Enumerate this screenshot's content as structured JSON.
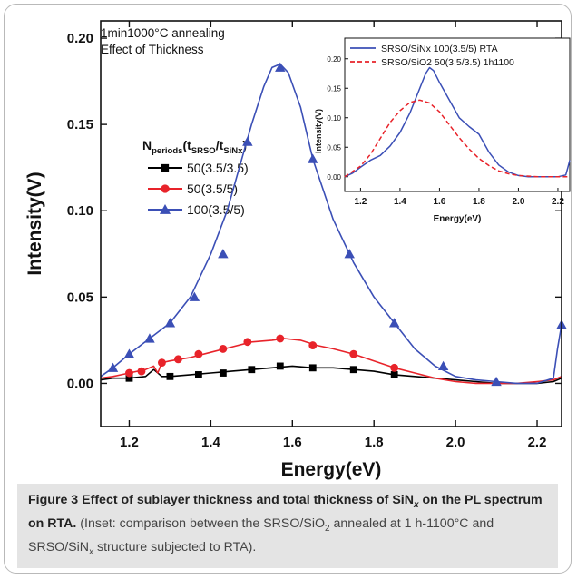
{
  "chart_data": [
    {
      "type": "line",
      "xlabel": "Energy(eV)",
      "ylabel": "Intensity(V)",
      "xlim": [
        1.13,
        2.26
      ],
      "ylim": [
        -0.025,
        0.21
      ],
      "xticks": [
        1.2,
        1.4,
        1.6,
        1.8,
        2.0,
        2.2
      ],
      "xtick_labels": [
        "1.2",
        "1.4",
        "1.6",
        "1.8",
        "2.0",
        "2.2"
      ],
      "yticks": [
        0.0,
        0.05,
        0.1,
        0.15,
        0.2
      ],
      "ytick_labels": [
        "0.00",
        "0.05",
        "0.10",
        "0.15",
        "0.20"
      ],
      "annotations": [
        "1min1000°C annealing",
        "Effect of Thickness"
      ],
      "legend_title": {
        "main": "N",
        "sub1": "periods",
        "mid1": "(t",
        "sub2": "SRSO",
        "mid2": "/t",
        "sub3": "SiNx",
        "end": ")"
      },
      "legend_position": "left-middle",
      "series": [
        {
          "name": "50(3.5/3.5)",
          "color": "#000000",
          "marker": "square",
          "x": [
            1.13,
            1.16,
            1.2,
            1.24,
            1.26,
            1.28,
            1.3,
            1.35,
            1.4,
            1.45,
            1.5,
            1.55,
            1.6,
            1.65,
            1.7,
            1.75,
            1.8,
            1.85,
            1.9,
            1.95,
            2.0,
            2.05,
            2.1,
            2.15,
            2.2,
            2.24,
            2.26
          ],
          "y": [
            0.002,
            0.003,
            0.003,
            0.004,
            0.008,
            0.004,
            0.004,
            0.005,
            0.006,
            0.007,
            0.008,
            0.009,
            0.01,
            0.009,
            0.009,
            0.008,
            0.007,
            0.005,
            0.004,
            0.003,
            0.002,
            0.001,
            0.0,
            0.0,
            0.0,
            0.001,
            0.003
          ],
          "markers_x": [
            1.2,
            1.3,
            1.37,
            1.43,
            1.5,
            1.57,
            1.65,
            1.75,
            1.85
          ],
          "markers_y": [
            0.003,
            0.004,
            0.005,
            0.006,
            0.008,
            0.01,
            0.009,
            0.008,
            0.005
          ]
        },
        {
          "name": "50(3.5/5)",
          "color": "#e8232a",
          "marker": "circle",
          "x": [
            1.13,
            1.16,
            1.2,
            1.24,
            1.26,
            1.27,
            1.28,
            1.3,
            1.35,
            1.4,
            1.45,
            1.5,
            1.55,
            1.58,
            1.62,
            1.66,
            1.7,
            1.75,
            1.8,
            1.85,
            1.9,
            1.95,
            2.0,
            2.05,
            2.1,
            2.15,
            2.2,
            2.24,
            2.26
          ],
          "y": [
            0.003,
            0.004,
            0.006,
            0.008,
            0.01,
            0.006,
            0.012,
            0.013,
            0.015,
            0.018,
            0.021,
            0.024,
            0.025,
            0.026,
            0.025,
            0.022,
            0.02,
            0.017,
            0.013,
            0.009,
            0.006,
            0.003,
            0.001,
            0.0,
            0.0,
            0.0,
            0.001,
            0.002,
            0.004
          ],
          "markers_x": [
            1.2,
            1.23,
            1.28,
            1.32,
            1.37,
            1.43,
            1.49,
            1.57,
            1.65,
            1.75,
            1.85
          ],
          "markers_y": [
            0.006,
            0.007,
            0.012,
            0.014,
            0.017,
            0.02,
            0.024,
            0.026,
            0.022,
            0.017,
            0.009
          ]
        },
        {
          "name": "100(3.5/5)",
          "color": "#3b4fb6",
          "marker": "triangle",
          "x": [
            1.13,
            1.16,
            1.2,
            1.25,
            1.3,
            1.35,
            1.4,
            1.44,
            1.47,
            1.5,
            1.53,
            1.55,
            1.57,
            1.59,
            1.62,
            1.65,
            1.7,
            1.75,
            1.8,
            1.85,
            1.9,
            1.95,
            2.0,
            2.05,
            2.1,
            2.15,
            2.2,
            2.24,
            2.25,
            2.26
          ],
          "y": [
            0.004,
            0.009,
            0.017,
            0.026,
            0.035,
            0.05,
            0.075,
            0.1,
            0.125,
            0.15,
            0.172,
            0.183,
            0.185,
            0.18,
            0.16,
            0.13,
            0.095,
            0.07,
            0.05,
            0.035,
            0.02,
            0.01,
            0.004,
            0.002,
            0.001,
            0.0,
            0.0,
            0.003,
            0.02,
            0.034
          ],
          "markers_x": [
            1.16,
            1.2,
            1.25,
            1.3,
            1.36,
            1.43,
            1.49,
            1.57,
            1.65,
            1.74,
            1.85,
            1.97,
            2.1,
            2.26
          ],
          "markers_y": [
            0.009,
            0.017,
            0.026,
            0.035,
            0.05,
            0.075,
            0.14,
            0.183,
            0.13,
            0.075,
            0.035,
            0.01,
            0.001,
            0.034
          ]
        }
      ]
    },
    {
      "type": "line",
      "xlabel": "Energy(eV)",
      "ylabel": "Intensity(V)",
      "xlim": [
        1.12,
        2.26
      ],
      "ylim": [
        -0.025,
        0.235
      ],
      "xticks": [
        1.2,
        1.4,
        1.6,
        1.8,
        2.0,
        2.2
      ],
      "xtick_labels": [
        "1.2",
        "1.4",
        "1.6",
        "1.8",
        "2.0",
        "2.2"
      ],
      "yticks": [
        0.0,
        0.05,
        0.1,
        0.15,
        0.2
      ],
      "ytick_labels": [
        "0.00",
        "0.05",
        "0.10",
        "0.15",
        "0.20"
      ],
      "legend_position": "top",
      "series": [
        {
          "name": "SRSO/SiNx 100(3.5/5) RTA",
          "color": "#3b4fb6",
          "dash": "solid",
          "x": [
            1.12,
            1.16,
            1.2,
            1.25,
            1.3,
            1.35,
            1.4,
            1.45,
            1.5,
            1.53,
            1.55,
            1.57,
            1.6,
            1.65,
            1.7,
            1.75,
            1.8,
            1.85,
            1.9,
            1.95,
            2.0,
            2.05,
            2.1,
            2.15,
            2.2,
            2.24,
            2.25,
            2.26
          ],
          "y": [
            0.0,
            0.006,
            0.016,
            0.028,
            0.036,
            0.052,
            0.075,
            0.108,
            0.15,
            0.175,
            0.185,
            0.18,
            0.16,
            0.13,
            0.1,
            0.085,
            0.072,
            0.042,
            0.02,
            0.008,
            0.002,
            0.0,
            0.0,
            0.0,
            0.0,
            0.003,
            0.015,
            0.028
          ]
        },
        {
          "name": "SRSO/SiO2 50(3.5/3.5) 1h1100",
          "color": "#e8232a",
          "dash": "dashed",
          "x": [
            1.12,
            1.2,
            1.25,
            1.3,
            1.35,
            1.4,
            1.45,
            1.5,
            1.55,
            1.6,
            1.65,
            1.7,
            1.75,
            1.8,
            1.85,
            1.9,
            1.95,
            2.0,
            2.1,
            2.2,
            2.26
          ],
          "y": [
            0.0,
            0.018,
            0.038,
            0.065,
            0.092,
            0.112,
            0.126,
            0.13,
            0.125,
            0.11,
            0.088,
            0.066,
            0.047,
            0.031,
            0.019,
            0.01,
            0.005,
            0.002,
            0.0,
            0.0,
            0.0
          ]
        }
      ]
    }
  ],
  "caption": {
    "figure_label": "Figure 3",
    "title_part1": "Effect of sublayer thickness and total thickness of",
    "title_sin": "SiN",
    "title_sin_sub": "x",
    "title_part2": "on the PL spectrum on RTA",
    "title_period": ".",
    "body_part1": "(Inset: comparison between the",
    "body_srso1": "SRSO/SiO",
    "body_srso1_sub": "2",
    "body_part2": "annealed at 1 h-1100°C and SRSO/SiN",
    "body_part2_sub": "x",
    "body_part3": "structure",
    "body_part4": "subjected to RTA)."
  }
}
